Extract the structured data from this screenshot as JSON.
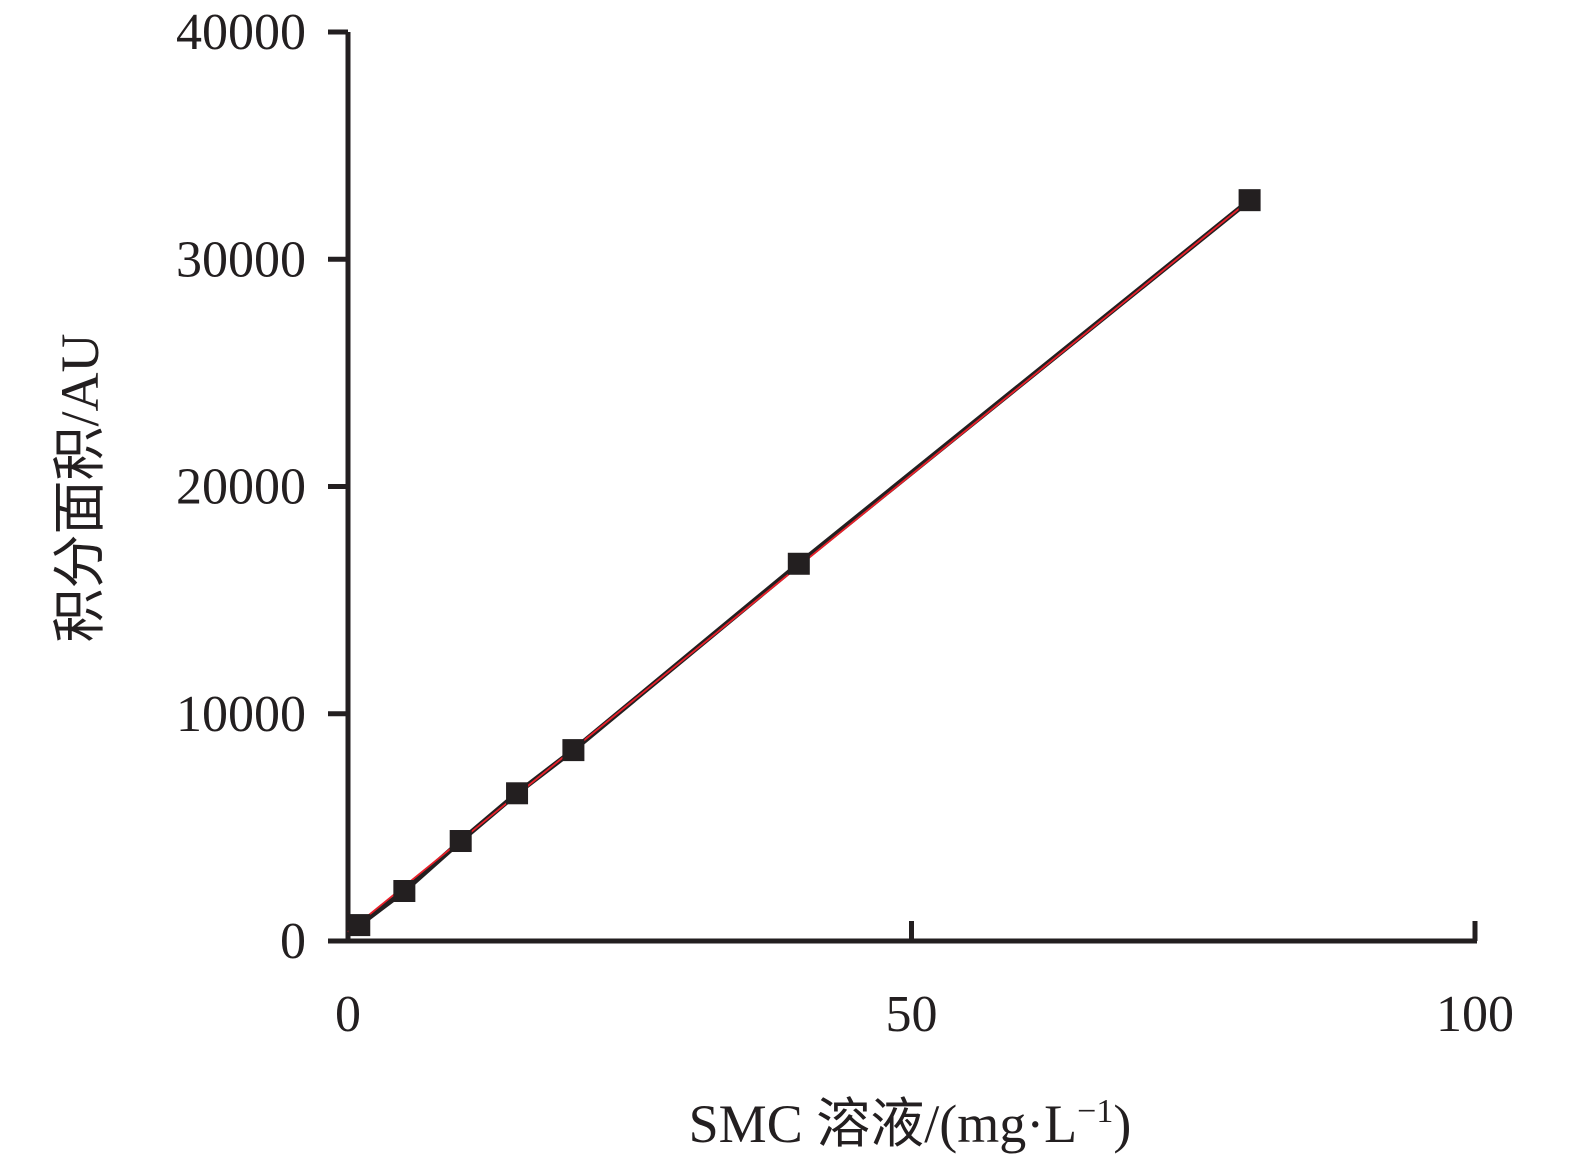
{
  "chart_data": {
    "type": "scatter",
    "xlabel": "SMC 溶液/(mg·L",
    "xlabel_sup": "−1",
    "xlabel_end": ")",
    "ylabel": "积分面积/AU",
    "xlim": [
      0,
      100
    ],
    "ylim": [
      0,
      40000
    ],
    "x_ticks": [
      0,
      50,
      100
    ],
    "y_ticks": [
      0,
      10000,
      20000,
      30000,
      40000
    ],
    "grid": false,
    "legend": "none",
    "colors": {
      "axis": "#231f20",
      "marker": "#231f20",
      "data_line": "#231f20",
      "fit_line": "#e8202a"
    },
    "series": [
      {
        "x": [
          1,
          5,
          10,
          15,
          20,
          40,
          80
        ],
        "values": [
          700,
          2200,
          4400,
          6500,
          8400,
          16600,
          32600
        ]
      }
    ],
    "fit_line": {
      "x": [
        0,
        80
      ],
      "y": [
        400,
        32600
      ]
    }
  }
}
